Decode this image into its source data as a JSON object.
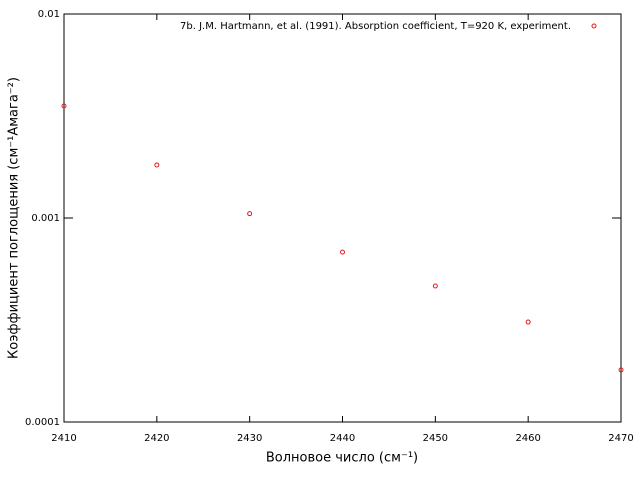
{
  "chart_data": {
    "type": "scatter",
    "x_label": "Волновое число (см⁻¹)",
    "y_label": "Коэффициент поглощения (см⁻¹Амага⁻²)",
    "log_y": true,
    "legend": "top-right",
    "xlim": [
      2410,
      2470
    ],
    "xticks": [
      2410,
      2420,
      2430,
      2440,
      2450,
      2460,
      2470
    ],
    "ylim": [
      0.0001,
      0.01
    ],
    "yticks": [
      0.0001,
      0.001,
      0.01
    ],
    "series": [
      {
        "name": "7b. J.M. Hartmann, et al. (1991). Absorption coefficient, T=920 K, experiment.",
        "color": "#e41a1c",
        "x": [
          2410,
          2420,
          2430,
          2440,
          2450,
          2460,
          2470
        ],
        "values": [
          0.00354,
          0.00182,
          0.00105,
          0.00068,
          0.000464,
          0.000309,
          0.00018
        ]
      }
    ]
  }
}
